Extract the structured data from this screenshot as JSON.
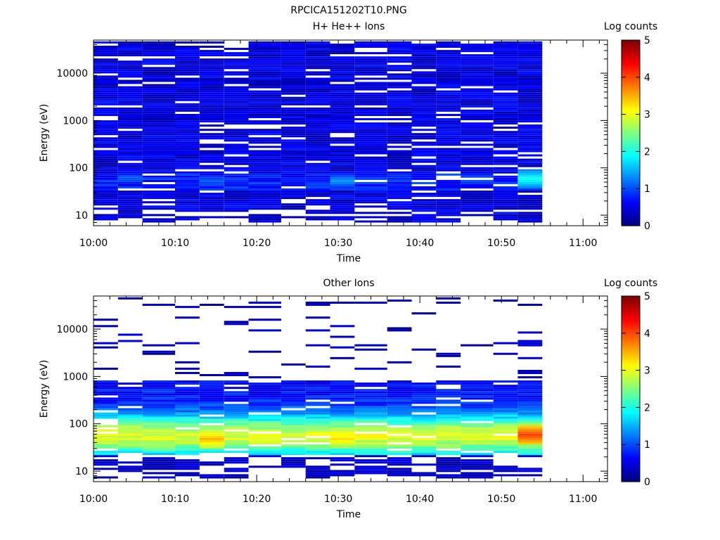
{
  "figure_title": "RPCICA151202T10.PNG",
  "panels": [
    {
      "title": "H+ He++ Ions",
      "ylabel": "Energy (eV)",
      "xlabel": "Time",
      "colorbar_label": "Log counts"
    },
    {
      "title": "Other Ions",
      "ylabel": "Energy (eV)",
      "xlabel": "Time",
      "colorbar_label": "Log counts"
    }
  ],
  "chart_data": [
    {
      "type": "heatmap",
      "title": "H+ He++ Ions",
      "xlabel": "Time",
      "ylabel": "Energy (eV)",
      "x_tick_labels": [
        "10:00",
        "10:10",
        "10:20",
        "10:30",
        "10:40",
        "10:50",
        "11:00"
      ],
      "x_range": [
        "10:00",
        "11:03"
      ],
      "y_scale": "log",
      "y_range": [
        6,
        50000
      ],
      "y_tick_labels": [
        "10",
        "100",
        "1000",
        "10000"
      ],
      "colorbar": {
        "label": "Log counts",
        "range": [
          0,
          5
        ],
        "tick_labels": [
          "0",
          "1",
          "2",
          "3",
          "4",
          "5"
        ],
        "colormap": "jet"
      },
      "time_bins": [
        "10:00",
        "10:03",
        "10:06",
        "10:10",
        "10:13",
        "10:16",
        "10:19",
        "10:23",
        "10:26",
        "10:29",
        "10:32",
        "10:36",
        "10:39",
        "10:42",
        "10:45",
        "10:49",
        "10:52"
      ],
      "energy_bins_eV": [
        8,
        12,
        18,
        27,
        40,
        58,
        85,
        125,
        185,
        270,
        400,
        590,
        870,
        1280,
        1890,
        2780,
        4100,
        6050,
        8900,
        13100,
        19300,
        28500,
        42000
      ],
      "data_extent_end": "10:55",
      "features": [
        {
          "description": "low-level counts (log ~0.1–0.6) across 10–45000 eV for 10:00–10:55"
        },
        {
          "peak_time": "10:53",
          "peak_energy_eV": 55,
          "peak_log_counts": 2.0
        },
        {
          "peak_time": "10:30",
          "peak_energy_eV": 50,
          "peak_log_counts": 1.4
        },
        {
          "peak_time": "10:15",
          "peak_energy_eV": 50,
          "peak_log_counts": 1.1
        }
      ]
    },
    {
      "type": "heatmap",
      "title": "Other Ions",
      "xlabel": "Time",
      "ylabel": "Energy (eV)",
      "x_tick_labels": [
        "10:00",
        "10:10",
        "10:20",
        "10:30",
        "10:40",
        "10:50",
        "11:00"
      ],
      "x_range": [
        "10:00",
        "11:03"
      ],
      "y_scale": "log",
      "y_range": [
        6,
        50000
      ],
      "y_tick_labels": [
        "10",
        "100",
        "1000",
        "10000"
      ],
      "colorbar": {
        "label": "Log counts",
        "range": [
          0,
          5
        ],
        "tick_labels": [
          "0",
          "1",
          "2",
          "3",
          "4",
          "5"
        ],
        "colormap": "jet"
      },
      "time_bins": [
        "10:00",
        "10:03",
        "10:06",
        "10:10",
        "10:13",
        "10:16",
        "10:19",
        "10:23",
        "10:26",
        "10:29",
        "10:32",
        "10:36",
        "10:39",
        "10:42",
        "10:45",
        "10:49",
        "10:52"
      ],
      "data_extent_end": "10:55",
      "features": [
        {
          "description": "main band 20–800 eV, strongest at 30–60 eV"
        },
        {
          "peak_time": "10:53",
          "peak_energy_eV": 55,
          "peak_log_counts": 4.1
        },
        {
          "peak_time": "10:15",
          "peak_energy_eV": 45,
          "peak_log_counts": 3.5
        },
        {
          "peak_time": "10:30",
          "peak_energy_eV": 45,
          "peak_log_counts": 3.3
        },
        {
          "peak_time": "10:43",
          "peak_energy_eV": 60,
          "peak_log_counts": 3.0
        },
        {
          "description": "sparse low counts (log ~0.1–0.5) up to ~30000 eV"
        }
      ]
    }
  ]
}
